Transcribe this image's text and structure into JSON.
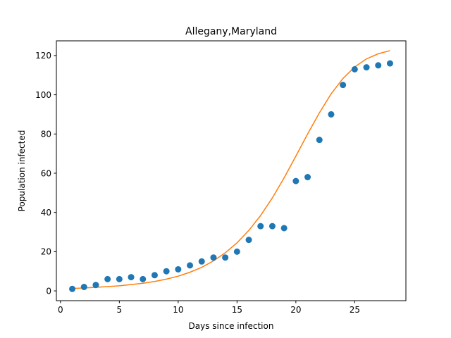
{
  "chart_data": {
    "type": "scatter",
    "title": "Allegany,Maryland",
    "xlabel": "Days since infection",
    "ylabel": "Population infected",
    "xlim": [
      -0.35,
      29.35
    ],
    "ylim": [
      -5,
      127.5
    ],
    "xticks": [
      0,
      5,
      10,
      15,
      20,
      25
    ],
    "yticks": [
      0,
      20,
      40,
      60,
      80,
      100,
      120
    ],
    "grid": false,
    "series": [
      {
        "kind": "scatter",
        "color": "#1f77b4",
        "x": [
          1,
          2,
          3,
          4,
          5,
          6,
          7,
          8,
          9,
          10,
          11,
          12,
          13,
          14,
          15,
          16,
          17,
          18,
          19,
          20,
          21,
          22,
          23,
          24,
          25,
          26,
          27,
          28
        ],
        "y": [
          1,
          2,
          3,
          6,
          6,
          7,
          6,
          8,
          10,
          11,
          13,
          15,
          17,
          17,
          20,
          26,
          33,
          33,
          32,
          56,
          58,
          77,
          90,
          105,
          113,
          114,
          115,
          116
        ]
      },
      {
        "kind": "line",
        "color": "#ff7f0e",
        "x": [
          1,
          2,
          3,
          4,
          5,
          6,
          7,
          8,
          9,
          10,
          11,
          12,
          13,
          14,
          15,
          16,
          17,
          18,
          19,
          20,
          21,
          22,
          23,
          24,
          25,
          26,
          27,
          28
        ],
        "y": [
          1.2,
          1.5,
          1.8,
          2.2,
          2.6,
          3.2,
          3.9,
          4.8,
          6.0,
          7.5,
          9.5,
          12.0,
          15.3,
          19.4,
          24.5,
          30.8,
          38.4,
          47.4,
          57.6,
          68.7,
          80.0,
          90.8,
          100.5,
          108.3,
          114.2,
          118.3,
          120.9,
          122.5
        ]
      }
    ]
  }
}
